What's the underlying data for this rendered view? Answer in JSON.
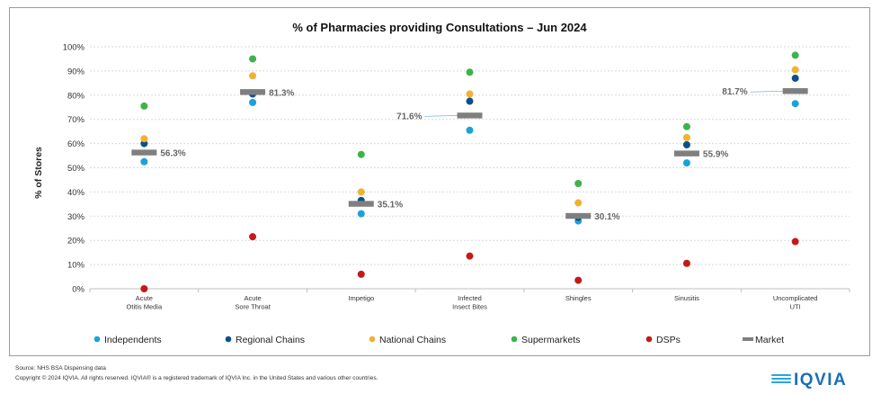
{
  "chart_data": {
    "type": "scatter",
    "title": "% of Pharmacies providing Consultations – Jun 2024",
    "xlabel": "",
    "ylabel": "% of Stores",
    "ylim": [
      0,
      100
    ],
    "yticks": [
      "0%",
      "10%",
      "20%",
      "30%",
      "40%",
      "50%",
      "60%",
      "70%",
      "80%",
      "90%",
      "100%"
    ],
    "grid": true,
    "legend_position": "bottom",
    "categories": [
      [
        "Acute",
        "Otitis Media"
      ],
      [
        "Acute",
        "Sore Throat"
      ],
      [
        "Impetigo"
      ],
      [
        "Infected",
        "Insect Bites"
      ],
      [
        "Shingles"
      ],
      [
        "Sinusitis"
      ],
      [
        "Uncomplicated",
        "UTI"
      ]
    ],
    "series": [
      {
        "name": "Independents",
        "color": "#1aa3d9",
        "marker": "circle",
        "values": [
          52.5,
          77.0,
          31.0,
          65.5,
          28.0,
          52.0,
          76.5
        ]
      },
      {
        "name": "Regional Chains",
        "color": "#0d4f8b",
        "marker": "circle",
        "values": [
          60.0,
          80.5,
          36.5,
          77.5,
          29.5,
          59.5,
          87.0
        ]
      },
      {
        "name": "National Chains",
        "color": "#f2b134",
        "marker": "circle",
        "values": [
          62.0,
          88.0,
          40.0,
          80.5,
          35.5,
          62.5,
          90.5
        ]
      },
      {
        "name": "Supermarkets",
        "color": "#3cb44b",
        "marker": "circle",
        "values": [
          75.5,
          95.0,
          55.5,
          89.5,
          43.5,
          67.0,
          96.5
        ]
      },
      {
        "name": "DSPs",
        "color": "#c41a1a",
        "marker": "circle",
        "values": [
          0.0,
          21.5,
          6.0,
          13.5,
          3.5,
          10.5,
          19.5
        ]
      },
      {
        "name": "Market",
        "color": "#7f7f7f",
        "marker": "dash",
        "values": [
          56.3,
          81.3,
          35.1,
          71.6,
          30.1,
          55.9,
          81.7
        ]
      }
    ],
    "market_labels": [
      "56.3%",
      "81.3%",
      "35.1%",
      "71.6%",
      "30.1%",
      "55.9%",
      "81.7%"
    ],
    "market_label_side": [
      "right",
      "right",
      "right",
      "left",
      "right",
      "right",
      "left"
    ]
  },
  "footer": {
    "source": "Source: NHS BSA Dispensing data",
    "copyright": "Copyright © 2024 IQVIA. All rights reserved. IQVIA® is a registered trademark of IQVIA Inc. in the United States and various other countries."
  },
  "logo": {
    "text": "IQVIA",
    "color": "#1a6fb5",
    "accent": "#26a7df"
  }
}
